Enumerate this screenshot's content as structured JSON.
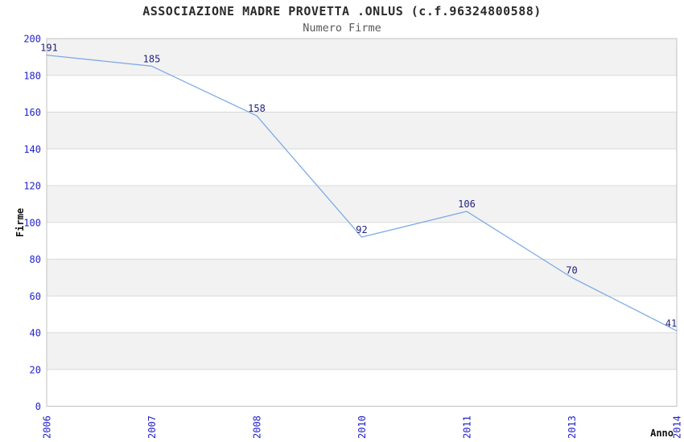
{
  "chart_data": {
    "type": "line",
    "title": "ASSOCIAZIONE MADRE PROVETTA .ONLUS (c.f.96324800588)",
    "subtitle": "Numero Firme",
    "xlabel": "Anno",
    "ylabel": "Firme",
    "categories": [
      "2006",
      "2007",
      "2008",
      "2010",
      "2011",
      "2013",
      "2014"
    ],
    "series": [
      {
        "name": "Numero Firme",
        "values": [
          191,
          185,
          158,
          92,
          106,
          70,
          41
        ]
      }
    ],
    "ylim": [
      0,
      200
    ],
    "ytick_step": 20,
    "grid": true,
    "legend": "none",
    "plot_bands": "alternating horizontal, gray on top band",
    "colors": {
      "line": "#7dabe4",
      "tick_labels": "#2222cc",
      "data_labels": "#23237f",
      "band": "#f2f2f2",
      "grid_line": "#d9d9d9",
      "plot_border": "#c0c0c0",
      "title": "#2b2b2b",
      "subtitle": "#585858",
      "axis_title": "#111111",
      "background": "#ffffff"
    }
  }
}
